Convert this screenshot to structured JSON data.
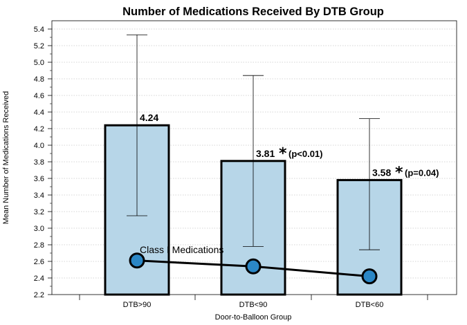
{
  "chart_data": {
    "type": "bar",
    "title": "Number of Medications Received By DTB Group",
    "xlabel": "Door-to-Balloon Group",
    "ylabel": "Mean Number of Medications Received",
    "ylim": [
      2.2,
      5.5
    ],
    "yticks": [
      "2.2",
      "2.4",
      "2.6",
      "2.8",
      "3.0",
      "3.2",
      "3.4",
      "3.6",
      "3.8",
      "4.0",
      "4.2",
      "4.4",
      "4.6",
      "4.8",
      "5.0",
      "5.2",
      "5.4"
    ],
    "categories": [
      "DTB>90",
      "DTB<90",
      "DTB<60"
    ],
    "values": [
      4.24,
      3.81,
      3.58
    ],
    "error_upper": [
      5.33,
      4.84,
      4.32
    ],
    "error_lower": [
      3.15,
      2.78,
      2.74
    ],
    "bar_labels": [
      "4.24",
      "3.81",
      "3.58"
    ],
    "significance": [
      "",
      "*",
      "*"
    ],
    "p_values": [
      "",
      "(p<0.01)",
      "(p=0.04)"
    ],
    "line_series": {
      "name": "Class I Medications",
      "values": [
        2.61,
        2.54,
        2.42
      ]
    },
    "grid": "horizontal dotted",
    "colors": {
      "bar_fill": "#b7d6e8",
      "bar_stroke": "#000000",
      "marker_fill": "#2b87c6",
      "line": "#000000",
      "grid": "#c8c8c8"
    }
  }
}
